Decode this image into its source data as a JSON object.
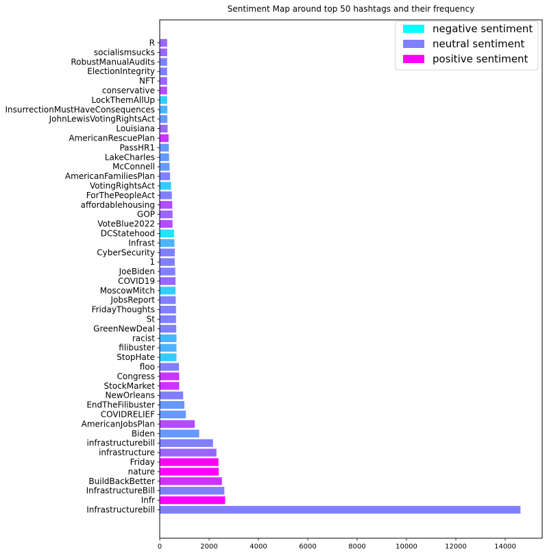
{
  "chart_data": {
    "type": "bar",
    "orientation": "horizontal",
    "title": "Sentiment Map around top 50 hashtags and their frequency",
    "xlabel": "",
    "ylabel": "",
    "xlim": [
      0,
      15500
    ],
    "xticks": [
      0,
      2000,
      4000,
      6000,
      8000,
      10000,
      12000,
      14000
    ],
    "grid": false,
    "legend_position": "top-right",
    "sentiment_colors": {
      "negative": "#00ffff",
      "neutral": "#8080ff",
      "positive": "#ff00ff"
    },
    "legend": [
      {
        "label": "negative sentiment",
        "color": "#00ffff"
      },
      {
        "label": "neutral sentiment",
        "color": "#8080ff"
      },
      {
        "label": "positive sentiment",
        "color": "#ff00ff"
      }
    ],
    "categories": [
      "Infrastructurebill",
      "Infr",
      "InfrastructureBill",
      "BuildBackBetter",
      "nature",
      "Friday",
      "infrastructure",
      "infrastructurebill",
      "Biden",
      "AmericanJobsPlan",
      "COVIDRELIEF",
      "EndTheFilibuster",
      "NewOrleans",
      "StockMarket",
      "Congress",
      "floo",
      "StopHate",
      "filibuster",
      "racist",
      "GreenNewDeal",
      "St",
      "FridayThoughts",
      "JobsReport",
      "MoscowMitch",
      "COVID19",
      "JoeBiden",
      "1",
      "CyberSecurity",
      "Infrast",
      "DCStatehood",
      "VoteBlue2022",
      "GOP",
      "affordablehousing",
      "ForThePeopleAct",
      "VotingRightsAct",
      "AmericanFamiliesPlan",
      "McConnell",
      "LakeCharles",
      "PassHR1",
      "AmericanRescuePlan",
      "Louisiana",
      "JohnLewisVotingRightsAct",
      "InsurrectionMustHaveConsequences",
      "LockThemAllUp",
      "conservative",
      "NFT",
      "ElectionIntegrity",
      "RobustManualAudits",
      "socialismsucks",
      "R"
    ],
    "values": [
      14620,
      2650,
      2620,
      2520,
      2390,
      2380,
      2300,
      2160,
      1600,
      1420,
      1060,
      1000,
      950,
      790,
      790,
      780,
      680,
      680,
      680,
      670,
      660,
      660,
      650,
      640,
      640,
      630,
      610,
      610,
      600,
      580,
      520,
      520,
      510,
      490,
      460,
      420,
      400,
      380,
      370,
      360,
      320,
      310,
      310,
      300,
      300,
      300,
      300,
      300,
      300,
      300
    ],
    "colors": [
      "#8080ff",
      "#ff00ff",
      "#8080ff",
      "#cc33ff",
      "#ff00ff",
      "#ff00ff",
      "#9966ff",
      "#8080ff",
      "#6699ff",
      "#b34dff",
      "#6699ff",
      "#6699ff",
      "#8080ff",
      "#cc33ff",
      "#cc33ff",
      "#8080ff",
      "#33ccff",
      "#4db3ff",
      "#4db3ff",
      "#8080ff",
      "#8080ff",
      "#8080ff",
      "#8080ff",
      "#33ccff",
      "#9966ff",
      "#8080ff",
      "#8080ff",
      "#8080ff",
      "#4db3ff",
      "#1ae6ff",
      "#b34dff",
      "#9966ff",
      "#b34dff",
      "#8080ff",
      "#33ccff",
      "#8080ff",
      "#6699ff",
      "#6699ff",
      "#6699ff",
      "#cc33ff",
      "#9966ff",
      "#6699ff",
      "#4db3ff",
      "#33ccff",
      "#b34dff",
      "#9966ff",
      "#8080ff",
      "#8080ff",
      "#9966ff",
      "#9966ff"
    ]
  }
}
